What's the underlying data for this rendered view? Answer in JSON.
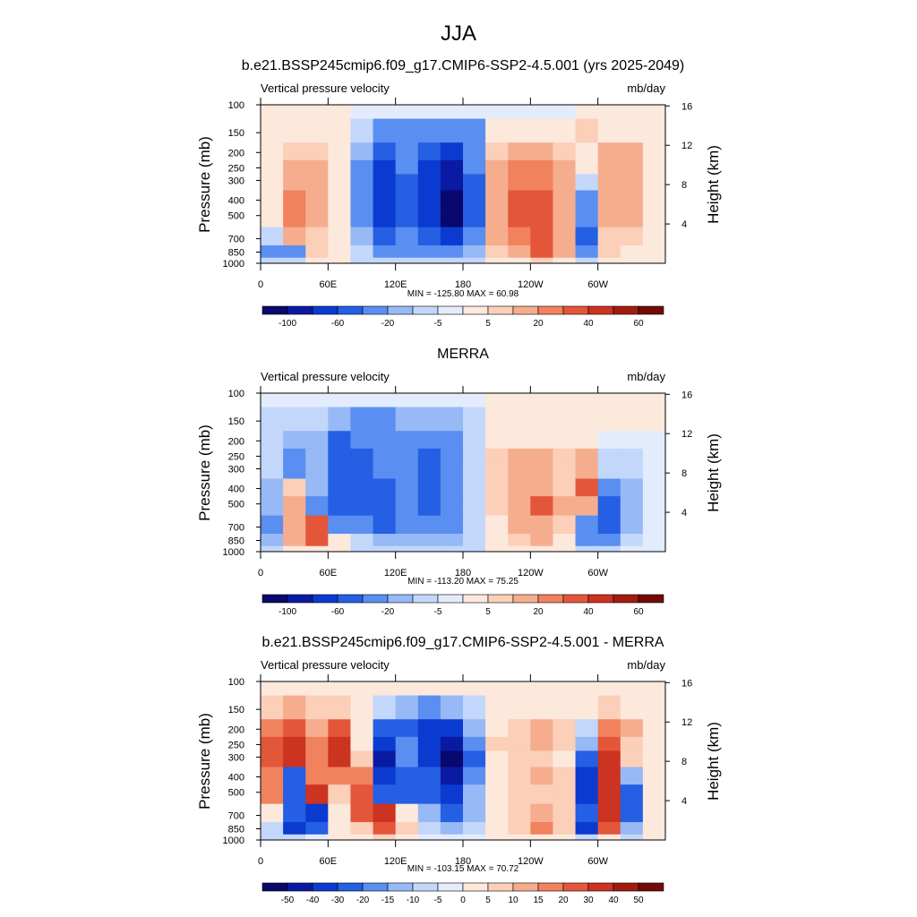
{
  "figure": {
    "title": "JJA"
  },
  "chart_data": [
    {
      "type": "heatmap",
      "title": "b.e21.BSSP245cmip6.f09_g17.CMIP6-SSP2-4.5.001 (yrs 2025-2049)",
      "left_label": "Vertical pressure velocity",
      "right_label": "mb/day",
      "ylabel": "Pressure (mb)",
      "ylabel_right": "Height (km)",
      "x_ticks": [
        "0",
        "60E",
        "120E",
        "180",
        "120W",
        "60W"
      ],
      "y_ticks": [
        "100",
        "150",
        "200",
        "250",
        "300",
        "400",
        "500",
        "700",
        "850",
        "1000"
      ],
      "y_ticks_right": [
        "16",
        "12",
        "8",
        "4"
      ],
      "min_max": "MIN = -125.80  MAX =  60.98",
      "colorbar_labels": [
        "-100",
        "-60",
        "-20",
        "-5",
        "5",
        "20",
        "40",
        "60"
      ],
      "field": {
        "rows_pressure_mb": [
          100,
          150,
          200,
          250,
          300,
          400,
          500,
          700,
          850,
          1000
        ],
        "cols_lon_deg": [
          0,
          20,
          40,
          60,
          80,
          100,
          120,
          140,
          160,
          180,
          200,
          220,
          240,
          260,
          280,
          300,
          320,
          340
        ],
        "values": [
          [
            2,
            2,
            2,
            2,
            0,
            -3,
            -3,
            -3,
            -3,
            -3,
            -3,
            -3,
            -3,
            -3,
            2,
            2,
            2,
            2
          ],
          [
            5,
            5,
            5,
            5,
            -5,
            -20,
            -20,
            -30,
            -30,
            -20,
            5,
            5,
            5,
            5,
            10,
            5,
            5,
            5
          ],
          [
            5,
            10,
            10,
            5,
            -10,
            -40,
            -30,
            -50,
            -60,
            -20,
            10,
            20,
            20,
            10,
            5,
            20,
            20,
            5
          ],
          [
            5,
            20,
            20,
            5,
            -20,
            -60,
            -30,
            -60,
            -80,
            -30,
            20,
            30,
            30,
            20,
            5,
            20,
            20,
            5
          ],
          [
            5,
            20,
            20,
            5,
            -20,
            -60,
            -40,
            -60,
            -90,
            -40,
            20,
            30,
            30,
            20,
            -5,
            20,
            20,
            5
          ],
          [
            5,
            30,
            20,
            5,
            -20,
            -60,
            -40,
            -60,
            -120,
            -40,
            20,
            40,
            40,
            20,
            -20,
            20,
            20,
            5
          ],
          [
            5,
            30,
            20,
            5,
            -20,
            -60,
            -40,
            -60,
            -100,
            -40,
            20,
            40,
            40,
            20,
            -30,
            20,
            20,
            5
          ],
          [
            -5,
            20,
            10,
            5,
            -10,
            -40,
            -30,
            -40,
            -60,
            -30,
            20,
            30,
            40,
            20,
            -40,
            10,
            10,
            5
          ],
          [
            -20,
            -30,
            10,
            5,
            -5,
            -20,
            -20,
            -20,
            -20,
            -10,
            10,
            20,
            40,
            20,
            -30,
            10,
            5,
            5
          ],
          [
            -5,
            -5,
            5,
            5,
            -5,
            -5,
            -5,
            -5,
            -5,
            -5,
            5,
            5,
            10,
            5,
            -5,
            5,
            5,
            5
          ]
        ]
      }
    },
    {
      "type": "heatmap",
      "title": "MERRA",
      "left_label": "Vertical pressure velocity",
      "right_label": "mb/day",
      "ylabel": "Pressure (mb)",
      "ylabel_right": "Height (km)",
      "x_ticks": [
        "0",
        "60E",
        "120E",
        "180",
        "120W",
        "60W"
      ],
      "y_ticks": [
        "100",
        "150",
        "200",
        "250",
        "300",
        "400",
        "500",
        "700",
        "850",
        "1000"
      ],
      "y_ticks_right": [
        "16",
        "12",
        "8",
        "4"
      ],
      "min_max": "MIN = -113.20  MAX =  75.25",
      "colorbar_labels": [
        "-100",
        "-60",
        "-20",
        "-5",
        "5",
        "20",
        "40",
        "60"
      ],
      "field": {
        "rows_pressure_mb": [
          100,
          150,
          200,
          250,
          300,
          400,
          500,
          700,
          850,
          1000
        ],
        "cols_lon_deg": [
          0,
          20,
          40,
          60,
          80,
          100,
          120,
          140,
          160,
          180,
          200,
          220,
          240,
          260,
          280,
          300,
          320,
          340
        ],
        "values": [
          [
            -3,
            -3,
            -3,
            -3,
            -3,
            -3,
            -3,
            -3,
            -3,
            -3,
            2,
            2,
            2,
            2,
            2,
            2,
            2,
            2
          ],
          [
            -5,
            -5,
            -5,
            -10,
            -20,
            -20,
            -10,
            -10,
            -10,
            -5,
            5,
            5,
            5,
            5,
            5,
            5,
            2,
            2
          ],
          [
            -5,
            -10,
            -10,
            -40,
            -30,
            -20,
            -20,
            -30,
            -20,
            -5,
            5,
            5,
            5,
            5,
            5,
            -3,
            -3,
            -3
          ],
          [
            -5,
            -20,
            -10,
            -40,
            -40,
            -30,
            -20,
            -40,
            -20,
            -5,
            10,
            20,
            20,
            10,
            20,
            -5,
            -5,
            -3
          ],
          [
            -5,
            -20,
            -10,
            -40,
            -40,
            -30,
            -20,
            -40,
            -30,
            -5,
            10,
            20,
            20,
            10,
            20,
            -5,
            -5,
            -3
          ],
          [
            -10,
            10,
            -10,
            -40,
            -40,
            -40,
            -20,
            -40,
            -30,
            -5,
            10,
            20,
            20,
            10,
            40,
            -20,
            -10,
            -3
          ],
          [
            -10,
            20,
            -20,
            -40,
            -40,
            -40,
            -20,
            -40,
            -30,
            -5,
            10,
            20,
            40,
            20,
            20,
            -40,
            -10,
            -3
          ],
          [
            -20,
            20,
            40,
            -20,
            -20,
            -40,
            -20,
            -30,
            -20,
            -5,
            5,
            20,
            20,
            10,
            -20,
            -40,
            -10,
            -3
          ],
          [
            -10,
            20,
            40,
            5,
            -5,
            -10,
            -10,
            -10,
            -10,
            -5,
            5,
            10,
            20,
            5,
            -20,
            -30,
            -5,
            -3
          ],
          [
            -5,
            5,
            5,
            5,
            -5,
            -5,
            -5,
            -5,
            -5,
            -5,
            5,
            5,
            5,
            5,
            -5,
            -5,
            -3,
            -3
          ]
        ]
      }
    },
    {
      "type": "heatmap",
      "title": "b.e21.BSSP245cmip6.f09_g17.CMIP6-SSP2-4.5.001 - MERRA",
      "left_label": "Vertical pressure velocity",
      "right_label": "mb/day",
      "ylabel": "Pressure (mb)",
      "ylabel_right": "Height (km)",
      "x_ticks": [
        "0",
        "60E",
        "120E",
        "180",
        "120W",
        "60W"
      ],
      "y_ticks": [
        "100",
        "150",
        "200",
        "250",
        "300",
        "400",
        "500",
        "700",
        "850",
        "1000"
      ],
      "y_ticks_right": [
        "16",
        "12",
        "8",
        "4"
      ],
      "min_max": "MIN = -103.15  MAX =  70.72",
      "colorbar_labels": [
        "-50",
        "-40",
        "-30",
        "-20",
        "-15",
        "-10",
        "-5",
        "0",
        "5",
        "10",
        "15",
        "20",
        "30",
        "40",
        "50"
      ],
      "field": {
        "rows_pressure_mb": [
          100,
          150,
          200,
          250,
          300,
          400,
          500,
          700,
          850,
          1000
        ],
        "cols_lon_deg": [
          0,
          20,
          40,
          60,
          80,
          100,
          120,
          140,
          160,
          180,
          200,
          220,
          240,
          260,
          280,
          300,
          320,
          340
        ],
        "values": [
          [
            2,
            2,
            2,
            2,
            2,
            2,
            2,
            2,
            2,
            2,
            1,
            1,
            1,
            1,
            2,
            2,
            2,
            2
          ],
          [
            10,
            15,
            10,
            10,
            5,
            -5,
            -10,
            -15,
            -10,
            -5,
            5,
            5,
            5,
            5,
            5,
            10,
            5,
            5
          ],
          [
            20,
            30,
            15,
            30,
            5,
            -20,
            -20,
            -30,
            -30,
            -10,
            5,
            10,
            15,
            10,
            -5,
            20,
            15,
            5
          ],
          [
            30,
            40,
            20,
            40,
            5,
            -30,
            -15,
            -30,
            -40,
            -15,
            10,
            10,
            15,
            10,
            -10,
            30,
            10,
            5
          ],
          [
            30,
            40,
            20,
            40,
            10,
            -40,
            -15,
            -30,
            -50,
            -20,
            5,
            10,
            10,
            5,
            -20,
            40,
            10,
            5
          ],
          [
            20,
            -20,
            20,
            20,
            20,
            -30,
            -20,
            -20,
            -40,
            -15,
            5,
            10,
            15,
            10,
            -30,
            40,
            -10,
            5
          ],
          [
            20,
            -20,
            40,
            10,
            30,
            -20,
            -20,
            -20,
            -30,
            -10,
            5,
            10,
            10,
            10,
            -30,
            40,
            -20,
            5
          ],
          [
            5,
            -20,
            -30,
            5,
            30,
            40,
            5,
            -10,
            -20,
            -10,
            5,
            10,
            15,
            10,
            -20,
            40,
            -20,
            5
          ],
          [
            -5,
            -30,
            -20,
            5,
            10,
            30,
            10,
            -5,
            -10,
            -5,
            5,
            10,
            20,
            10,
            -30,
            30,
            -10,
            5
          ],
          [
            -5,
            -5,
            0,
            5,
            5,
            10,
            5,
            0,
            0,
            0,
            5,
            5,
            5,
            5,
            -5,
            5,
            -5,
            5
          ]
        ]
      }
    }
  ],
  "colors": {
    "diverging_palette": [
      "#08086e",
      "#0a1aa3",
      "#0b3ad0",
      "#245fe4",
      "#5a8ef0",
      "#97b9f6",
      "#c3d7fb",
      "#e2ecfd",
      "#fde8dc",
      "#fbcfb8",
      "#f6ad8e",
      "#f0825e",
      "#e4563a",
      "#cc3320",
      "#a31b10",
      "#730a06"
    ]
  }
}
